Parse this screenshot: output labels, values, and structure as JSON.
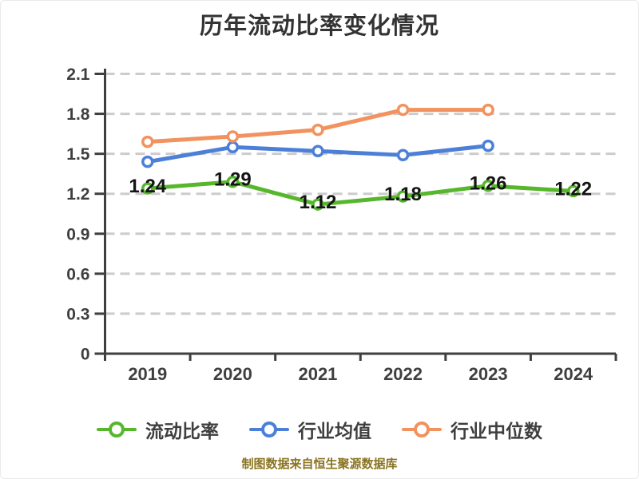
{
  "title": "历年流动比率变化情况",
  "footer": "制图数据来自恒生聚源数据库",
  "chart_data": {
    "type": "line",
    "title": "历年流动比率变化情况",
    "categories": [
      "2019",
      "2020",
      "2021",
      "2022",
      "2023",
      "2024"
    ],
    "series": [
      {
        "name": "流动比率",
        "color": "#56b72c",
        "values": [
          1.24,
          1.29,
          1.12,
          1.18,
          1.26,
          1.22
        ],
        "point_labels": true
      },
      {
        "name": "行业均值",
        "color": "#4c80d8",
        "values": [
          1.44,
          1.55,
          1.52,
          1.49,
          1.56,
          null
        ],
        "point_labels": false
      },
      {
        "name": "行业中位数",
        "color": "#f2925e",
        "values": [
          1.59,
          1.63,
          1.68,
          1.83,
          1.83,
          null
        ],
        "point_labels": false
      }
    ],
    "ylim": [
      0,
      2.1
    ],
    "yticks": [
      0,
      0.3,
      0.6,
      0.9,
      1.2,
      1.5,
      1.8,
      2.1
    ],
    "grid": "horizontal-dashed",
    "legend_position": "bottom",
    "marker": "circle-white-fill"
  },
  "colors": {
    "background": "#ffffff",
    "title": "#333333",
    "axis": "#3f3f3f",
    "grid": "#cccccc",
    "tick_label": "#3f3f3f",
    "data_label": "#141414",
    "legend_label": "#3f3f3f",
    "footer": "#8a7420"
  }
}
